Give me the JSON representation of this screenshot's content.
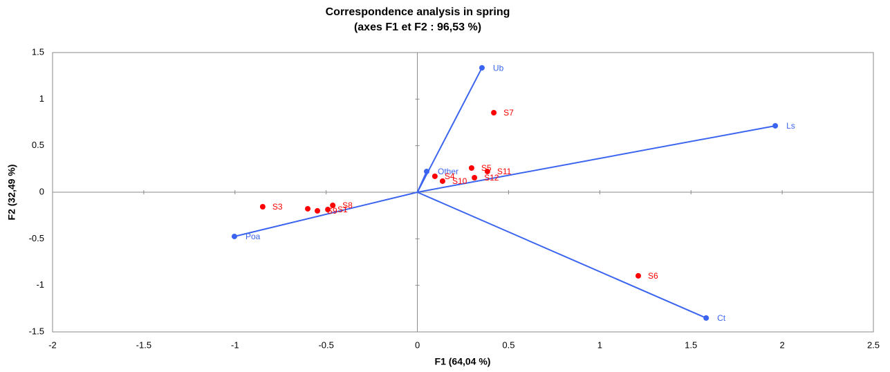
{
  "chart_data": {
    "type": "biplot",
    "title": [
      "Correspondence analysis in  spring",
      "(axes F1 et F2 : 96,53 %)"
    ],
    "x_label": "F1 (64,04 %)",
    "y_label": "F2 (32,49 %)",
    "xlim": [
      -2,
      2.5
    ],
    "xticks": [
      -2,
      -1.5,
      -1,
      -0.5,
      0,
      0.5,
      1,
      1.5,
      2,
      2.5
    ],
    "ylim": [
      -1.5,
      1.5
    ],
    "yticks": [
      -1.5,
      -1,
      -0.5,
      0,
      0.5,
      1,
      1.5
    ],
    "groups": [
      {
        "color": "#3b64f0",
        "vectors": true,
        "labels": [
          "Ub",
          "Ls",
          "Ct",
          "Poa",
          "Other"
        ],
        "x": [
          0.354,
          1.962,
          1.583,
          -1.003,
          0.051
        ],
        "y": [
          1.336,
          0.713,
          -1.351,
          -0.475,
          0.223
        ]
      },
      {
        "color": "#ff0000",
        "vectors": false,
        "labels": [
          "S7",
          "S5",
          "S11",
          "S12",
          "S4",
          "S10",
          "S6",
          "S3",
          null,
          "S9",
          "S1",
          "S8"
        ],
        "x": [
          0.419,
          0.297,
          0.384,
          0.313,
          0.096,
          0.138,
          1.211,
          -0.848,
          -0.601,
          -0.548,
          -0.491,
          -0.464
        ],
        "y": [
          0.854,
          0.26,
          0.223,
          0.156,
          0.171,
          0.119,
          -0.898,
          -0.156,
          -0.178,
          -0.2,
          -0.186,
          -0.141
        ]
      }
    ]
  }
}
